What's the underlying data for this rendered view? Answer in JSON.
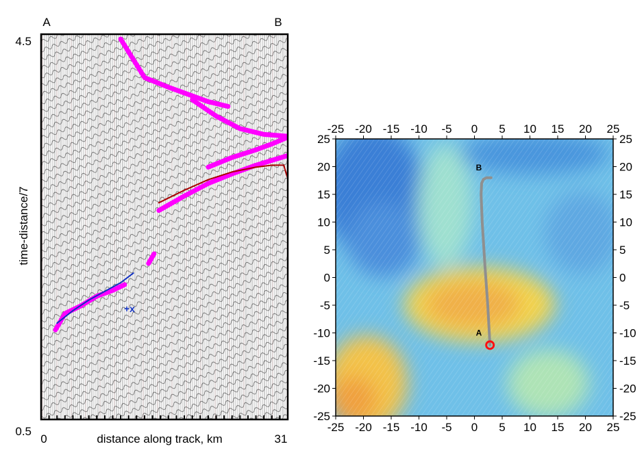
{
  "seismic_panel": {
    "chart_data": {
      "type": "line",
      "title": "",
      "xlabel": "distance along track, km",
      "ylabel": "time-distance/7",
      "xlim": [
        0,
        31
      ],
      "ylim": [
        0.5,
        4.5
      ],
      "x_tick_labels": [
        "0",
        "31"
      ],
      "y_tick_labels": [
        "4.5",
        "0.5"
      ],
      "endpoint_labels": {
        "left": "A",
        "right": "B"
      },
      "picks_annotation": "+x",
      "series": [
        {
          "color": "#ff00ff",
          "x": [
            1.8,
            3.0,
            5.0,
            7.0,
            9.0,
            10.5
          ],
          "y": [
            1.43,
            1.6,
            1.68,
            1.78,
            1.84,
            1.9
          ]
        },
        {
          "color": "#1030c0",
          "x": [
            2.0,
            4.0,
            6.0,
            8.0,
            10.0,
            11.6
          ],
          "y": [
            1.5,
            1.63,
            1.74,
            1.83,
            1.92,
            2.02
          ]
        },
        {
          "color": "#ff00ff",
          "x": [
            13.5,
            14.2
          ],
          "y": [
            2.12,
            2.22
          ]
        },
        {
          "color": "#ff00ff",
          "x": [
            14.8,
            18.0,
            21.0,
            24.0,
            27.0,
            29.0,
            31.0
          ],
          "y": [
            2.67,
            2.82,
            2.95,
            3.05,
            3.14,
            3.19,
            3.24
          ]
        },
        {
          "color": "#aa0000",
          "x": [
            14.8,
            18.0,
            21.0,
            24.0,
            27.0,
            29.0,
            30.5,
            31.0
          ],
          "y": [
            2.75,
            2.88,
            2.99,
            3.07,
            3.12,
            3.14,
            3.14,
            3.0
          ]
        },
        {
          "color": "#ff00ff",
          "x": [
            21.0,
            24.0,
            27.0,
            29.0,
            31.0
          ],
          "y": [
            3.12,
            3.22,
            3.3,
            3.36,
            3.43
          ]
        },
        {
          "color": "#ff00ff",
          "x": [
            19.0,
            22.0,
            25.0,
            28.0,
            31.0
          ],
          "y": [
            3.82,
            3.65,
            3.52,
            3.46,
            3.44
          ]
        },
        {
          "color": "#ff00ff",
          "x": [
            10.0,
            11.5,
            13.0,
            16.0,
            19.0,
            21.0,
            23.5
          ],
          "y": [
            4.45,
            4.25,
            4.05,
            3.95,
            3.86,
            3.8,
            3.75
          ]
        }
      ]
    }
  },
  "map_panel": {
    "chart_data": {
      "type": "heatmap",
      "title": "",
      "xlabel": "",
      "ylabel": "",
      "xlim": [
        -25,
        25
      ],
      "ylim": [
        -25,
        25
      ],
      "x_ticks": [
        -25,
        -20,
        -15,
        -10,
        -5,
        0,
        5,
        10,
        15,
        20,
        25
      ],
      "y_ticks": [
        25,
        20,
        15,
        10,
        5,
        0,
        -5,
        -10,
        -15,
        -20,
        -25
      ],
      "track": {
        "color": "#8f8f8f",
        "x": [
          2.8,
          2.4,
          1.9,
          1.4,
          1.2,
          1.3,
          1.6,
          2.2,
          3.0
        ],
        "y": [
          -12.2,
          -5,
          2,
          10,
          15,
          17,
          17.7,
          18.0,
          18.0
        ]
      },
      "labels": [
        {
          "text": "A",
          "x": 0.8,
          "y": -10.5
        },
        {
          "text": "B",
          "x": 0.8,
          "y": 19.3
        }
      ],
      "marker": {
        "type": "circle",
        "color": "#ff1010",
        "x": 2.8,
        "y": -12.2
      }
    }
  }
}
